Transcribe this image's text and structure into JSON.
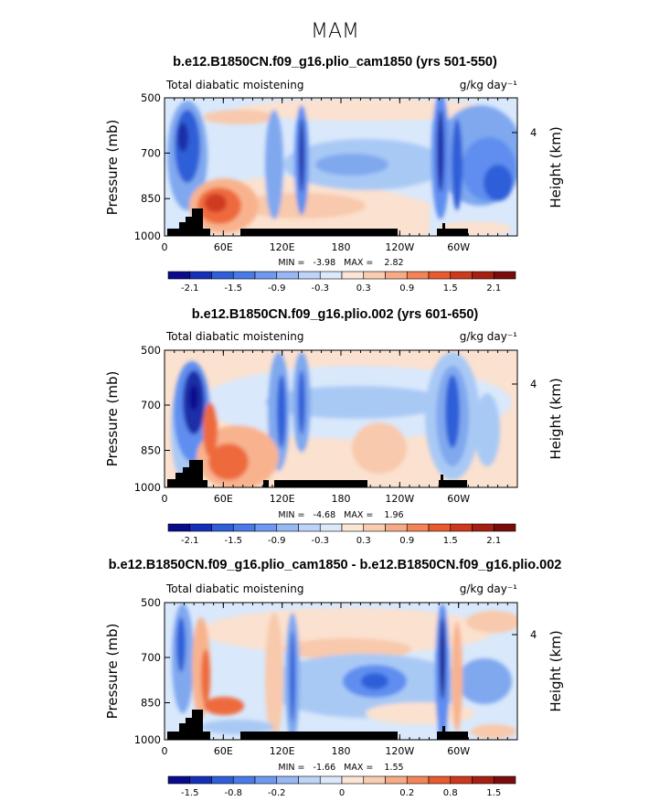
{
  "figure": {
    "title": "MAM"
  },
  "colors": {
    "blue_dark": "#0a0a8c",
    "blue": "#2f5fd8",
    "blue_mid": "#5f8ef0",
    "blue_light": "#a9c9f5",
    "blue_pale": "#d9e8fb",
    "orange_pale": "#fbe1cf",
    "orange_light": "#f8b38e",
    "orange": "#ee6b3c",
    "red": "#cf3a22",
    "red_dark": "#7a0c0c",
    "terrain": "#000000"
  },
  "chart_data": [
    {
      "type": "heatmap",
      "title": "b.e12.B1850CN.f09_g16.plio_cam1850 (yrs 501-550)",
      "left_label": "Total diabatic moistening",
      "units": "g/kg day⁻¹",
      "ylabel": "Pressure (mb)",
      "ylabel_right": "Height (km)",
      "yticks": [
        "500",
        "700",
        "850",
        "1000"
      ],
      "yticks_right": [
        "4"
      ],
      "xticks": [
        "0",
        "60E",
        "120E",
        "180",
        "120W",
        "60W"
      ],
      "stats": "MIN =   -3.98   MAX =    2.82",
      "colorbar_labels": [
        "-2.1",
        "-1.5",
        "-0.9",
        "-0.3",
        "0.3",
        "0.9",
        "1.5",
        "2.1"
      ]
    },
    {
      "type": "heatmap",
      "title": "b.e12.B1850CN.f09_g16.plio.002 (yrs 601-650)",
      "left_label": "Total diabatic moistening",
      "units": "g/kg day⁻¹",
      "ylabel": "Pressure (mb)",
      "ylabel_right": "Height (km)",
      "yticks": [
        "500",
        "700",
        "850",
        "1000"
      ],
      "yticks_right": [
        "4"
      ],
      "xticks": [
        "0",
        "60E",
        "120E",
        "180",
        "120W",
        "60W"
      ],
      "stats": "MIN =   -4.68   MAX =    1.96",
      "colorbar_labels": [
        "-2.1",
        "-1.5",
        "-0.9",
        "-0.3",
        "0.3",
        "0.9",
        "1.5",
        "2.1"
      ]
    },
    {
      "type": "heatmap",
      "title": "b.e12.B1850CN.f09_g16.plio_cam1850 - b.e12.B1850CN.f09_g16.plio.002",
      "left_label": "Total diabatic moistening",
      "units": "g/kg day⁻¹",
      "ylabel": "Pressure (mb)",
      "ylabel_right": "Height (km)",
      "yticks": [
        "500",
        "700",
        "850",
        "1000"
      ],
      "yticks_right": [
        "4"
      ],
      "xticks": [
        "0",
        "60E",
        "120E",
        "180",
        "120W",
        "60W"
      ],
      "stats": "MIN =   -1.66   MAX =    1.55",
      "colorbar_labels": [
        "-1.5",
        "-0.8",
        "-0.2",
        "0",
        "0.2",
        "0.8",
        "1.5"
      ]
    }
  ]
}
